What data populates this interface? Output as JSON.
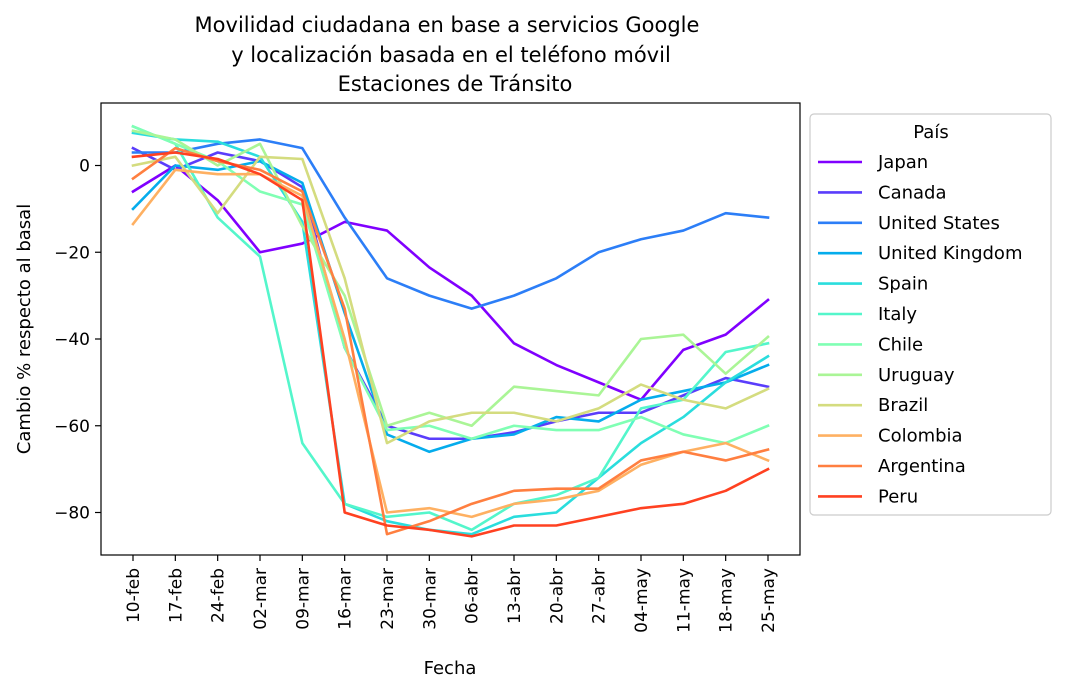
{
  "chart_data": {
    "type": "line",
    "title": [
      "Movilidad ciudadana en base a servicios Google",
      "y localización basada en el teléfono móvil",
      "Estaciones de Tránsito"
    ],
    "xlabel": "Fecha",
    "ylabel": "Cambio % respecto al basal",
    "ylim": [
      -90,
      14
    ],
    "yticks": [
      0,
      -20,
      -40,
      -60,
      -80
    ],
    "categories": [
      "10-feb",
      "17-feb",
      "24-feb",
      "02-mar",
      "09-mar",
      "16-mar",
      "23-mar",
      "30-mar",
      "06-abr",
      "13-abr",
      "20-abr",
      "27-abr",
      "04-may",
      "11-may",
      "18-may",
      "25-may"
    ],
    "legend": {
      "title": "País",
      "placement": "outside-right"
    },
    "series": [
      {
        "name": "Japan",
        "color": "#8000ff",
        "values": [
          -6,
          0,
          -8,
          -20,
          -18,
          -13,
          -15,
          -23.5,
          -30,
          -41,
          -46,
          -50,
          -54,
          -42.5,
          -39,
          -31
        ]
      },
      {
        "name": "Canada",
        "color": "#5a3dfb",
        "values": [
          4,
          -1,
          3,
          1,
          -5,
          -42,
          -60,
          -63,
          -63,
          -61.5,
          -59,
          -57,
          -57,
          -53,
          -49,
          -51
        ]
      },
      {
        "name": "United States",
        "color": "#2c7ef7",
        "values": [
          3,
          3,
          5,
          6,
          4,
          -12,
          -26,
          -30,
          -33,
          -30,
          -26,
          -20,
          -17,
          -15,
          -11,
          -12
        ]
      },
      {
        "name": "United Kingdom",
        "color": "#05acec",
        "values": [
          -10,
          0,
          -1,
          1,
          -4,
          -34,
          -62,
          -66,
          -63,
          -62,
          -58,
          -59,
          -54,
          -52,
          -50,
          -46
        ]
      },
      {
        "name": "Spain",
        "color": "#2adddd",
        "values": [
          7.5,
          6,
          5.5,
          2,
          -13,
          -78,
          -82,
          -84,
          -85,
          -81,
          -80,
          -72,
          -64,
          -58,
          -50,
          -44
        ]
      },
      {
        "name": "Italy",
        "color": "#54f6cb",
        "values": [
          9,
          5,
          -12,
          -21,
          -64,
          -78,
          -81,
          -80,
          -84,
          -78,
          -76,
          -72,
          -56,
          -54,
          -43,
          -41
        ]
      },
      {
        "name": "Chile",
        "color": "#80ffb4",
        "values": [
          9,
          5,
          1,
          -6,
          -9,
          -42,
          -61,
          -60,
          -63,
          -60,
          -61,
          -61,
          -58,
          -62,
          -64,
          -60
        ]
      },
      {
        "name": "Uruguay",
        "color": "#aaf596",
        "values": [
          8,
          6,
          0,
          5,
          -14,
          -30,
          -60,
          -57,
          -60,
          -51,
          -52,
          -53,
          -40,
          -39,
          -48,
          -39.5
        ]
      },
      {
        "name": "Brazil",
        "color": "#d4dc7f",
        "values": [
          0,
          2,
          -11,
          2,
          1.5,
          -26,
          -64,
          -59,
          -57,
          -57,
          -59,
          -56,
          -50.5,
          -54,
          -56,
          -51.5
        ]
      },
      {
        "name": "Colombia",
        "color": "#feb062",
        "values": [
          -13.5,
          -1,
          -2,
          -2,
          -7,
          -40,
          -80,
          -79,
          -81,
          -78,
          -77,
          -75,
          -69,
          -66,
          -64,
          -68
        ]
      },
      {
        "name": "Argentina",
        "color": "#ff7f40",
        "values": [
          -3,
          4,
          1,
          -1,
          -6,
          -33,
          -85,
          -82,
          -78,
          -75,
          -74.5,
          -74.5,
          -68,
          -66,
          -68,
          -65.5
        ]
      },
      {
        "name": "Peru",
        "color": "#ff4121",
        "values": [
          2,
          3,
          1.5,
          -2,
          -8,
          -80,
          -83,
          -84,
          -85.5,
          -83,
          -83,
          -81,
          -79,
          -78,
          -75,
          -70
        ]
      }
    ]
  }
}
